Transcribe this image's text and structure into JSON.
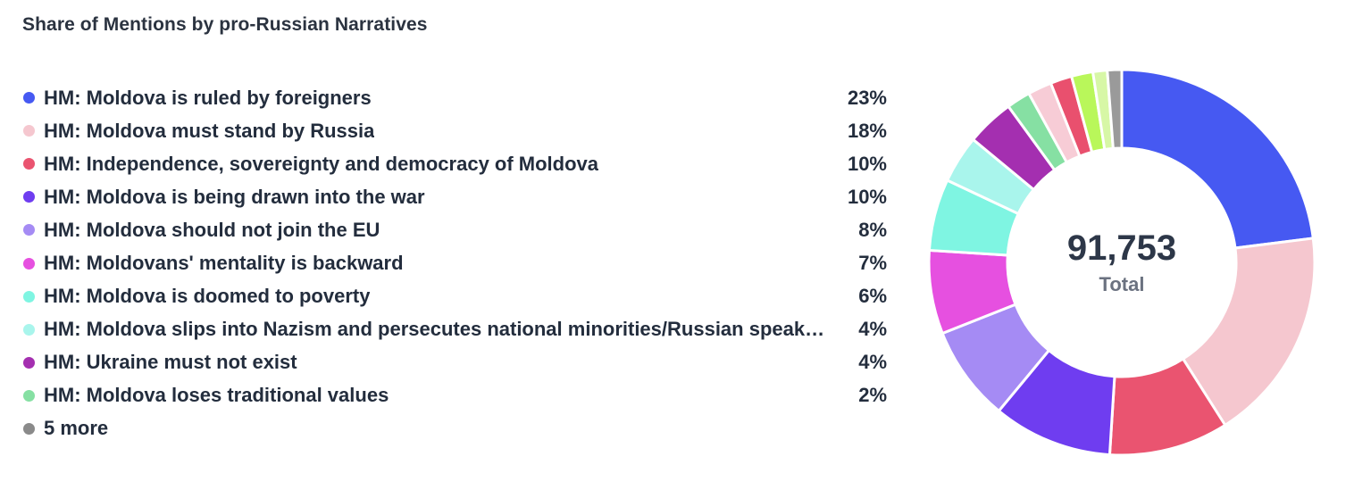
{
  "chart_data": {
    "type": "pie",
    "variant": "donut",
    "title": "Share of Mentions by pro-Russian Narratives",
    "total_value": "91,753",
    "total_label": "Total",
    "legend_position": "left",
    "slices": [
      {
        "label": "HM: Moldova is ruled by foreigners",
        "pct_label": "23%",
        "value": 23,
        "color": "#4659f2"
      },
      {
        "label": "HM: Moldova must stand by Russia",
        "pct_label": "18%",
        "value": 18,
        "color": "#f5c7cf"
      },
      {
        "label": "HM: Independence, sovereignty and democracy of Moldova",
        "pct_label": "10%",
        "value": 10,
        "color": "#ea5470"
      },
      {
        "label": "HM: Moldova is being drawn into the war",
        "pct_label": "10%",
        "value": 10,
        "color": "#6f3df0"
      },
      {
        "label": "HM: Moldova should not join the EU",
        "pct_label": "8%",
        "value": 8,
        "color": "#a58bf4"
      },
      {
        "label": "HM: Moldovans' mentality is backward",
        "pct_label": "7%",
        "value": 7,
        "color": "#e650e0"
      },
      {
        "label": "HM: Moldova is doomed to poverty",
        "pct_label": "6%",
        "value": 6,
        "color": "#7ff5e2"
      },
      {
        "label": "HM: Moldova slips into Nazism and persecutes national minorities/Russian speakers",
        "pct_label": "4%",
        "value": 4,
        "color": "#a9f5ec"
      },
      {
        "label": "HM: Ukraine must not exist",
        "pct_label": "4%",
        "value": 4,
        "color": "#a42fb0"
      },
      {
        "label": "HM: Moldova loses traditional values",
        "pct_label": "2%",
        "value": 2,
        "color": "#86e0a3"
      },
      {
        "label": "5 more",
        "pct_label": "",
        "value": 8,
        "color": "#8a8a8a",
        "sub_values": [
          2,
          1.8,
          1.8,
          1.2,
          1.2
        ],
        "sub_colors": [
          "#f7ccd6",
          "#e9506e",
          "#b9f75a",
          "#d7f7a6",
          "#9a9a9a"
        ]
      }
    ]
  }
}
